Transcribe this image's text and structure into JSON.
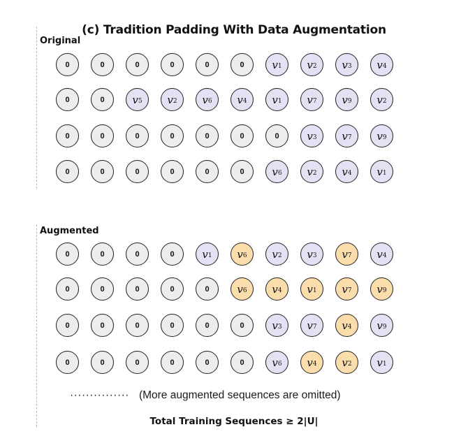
{
  "title": "(c) Tradition Padding With Data Augmentation",
  "sections": [
    {
      "label": "Original",
      "rows": [
        [
          "0",
          "0",
          "0",
          "0",
          "0",
          "0",
          "v1",
          "v2",
          "v3",
          "v4"
        ],
        [
          "0",
          "0",
          "v5",
          "v2",
          "v6",
          "v4",
          "v1",
          "v7",
          "v9",
          "v2"
        ],
        [
          "0",
          "0",
          "0",
          "0",
          "0",
          "0",
          "0",
          "v3",
          "v7",
          "v9"
        ],
        [
          "0",
          "0",
          "0",
          "0",
          "0",
          "0",
          "v6",
          "v2",
          "v4",
          "v1"
        ]
      ],
      "highlights": [
        [
          false,
          false,
          false,
          false,
          false,
          false,
          false,
          false,
          false,
          false
        ],
        [
          false,
          false,
          false,
          false,
          false,
          false,
          false,
          false,
          false,
          false
        ],
        [
          false,
          false,
          false,
          false,
          false,
          false,
          false,
          false,
          false,
          false
        ],
        [
          false,
          false,
          false,
          false,
          false,
          false,
          false,
          false,
          false,
          false
        ]
      ]
    },
    {
      "label": "Augmented",
      "rows": [
        [
          "0",
          "0",
          "0",
          "0",
          "v1",
          "v6",
          "v2",
          "v3",
          "v7",
          "v4"
        ],
        [
          "0",
          "0",
          "0",
          "0",
          "0",
          "v6",
          "v4",
          "v1",
          "v7",
          "v9"
        ],
        [
          "0",
          "0",
          "0",
          "0",
          "0",
          "0",
          "v3",
          "v7",
          "v4",
          "v9"
        ],
        [
          "0",
          "0",
          "0",
          "0",
          "0",
          "0",
          "v6",
          "v4",
          "v2",
          "v1"
        ]
      ],
      "highlights": [
        [
          false,
          false,
          false,
          false,
          false,
          true,
          false,
          false,
          true,
          false
        ],
        [
          false,
          false,
          false,
          false,
          false,
          true,
          true,
          true,
          true,
          true
        ],
        [
          false,
          false,
          false,
          false,
          false,
          false,
          false,
          false,
          true,
          false
        ],
        [
          false,
          false,
          false,
          false,
          false,
          false,
          false,
          true,
          true,
          false
        ]
      ]
    }
  ],
  "omitted_dots": "···············",
  "omitted_note": "(More augmented sequences are omitted)",
  "total_label": "Total Training Sequences ≥ 2|U|",
  "colors": {
    "zero_fill": "#ededed",
    "item_fill": "#e2e2f4",
    "augmented_fill": "#fbdcab",
    "border": "#222222"
  }
}
